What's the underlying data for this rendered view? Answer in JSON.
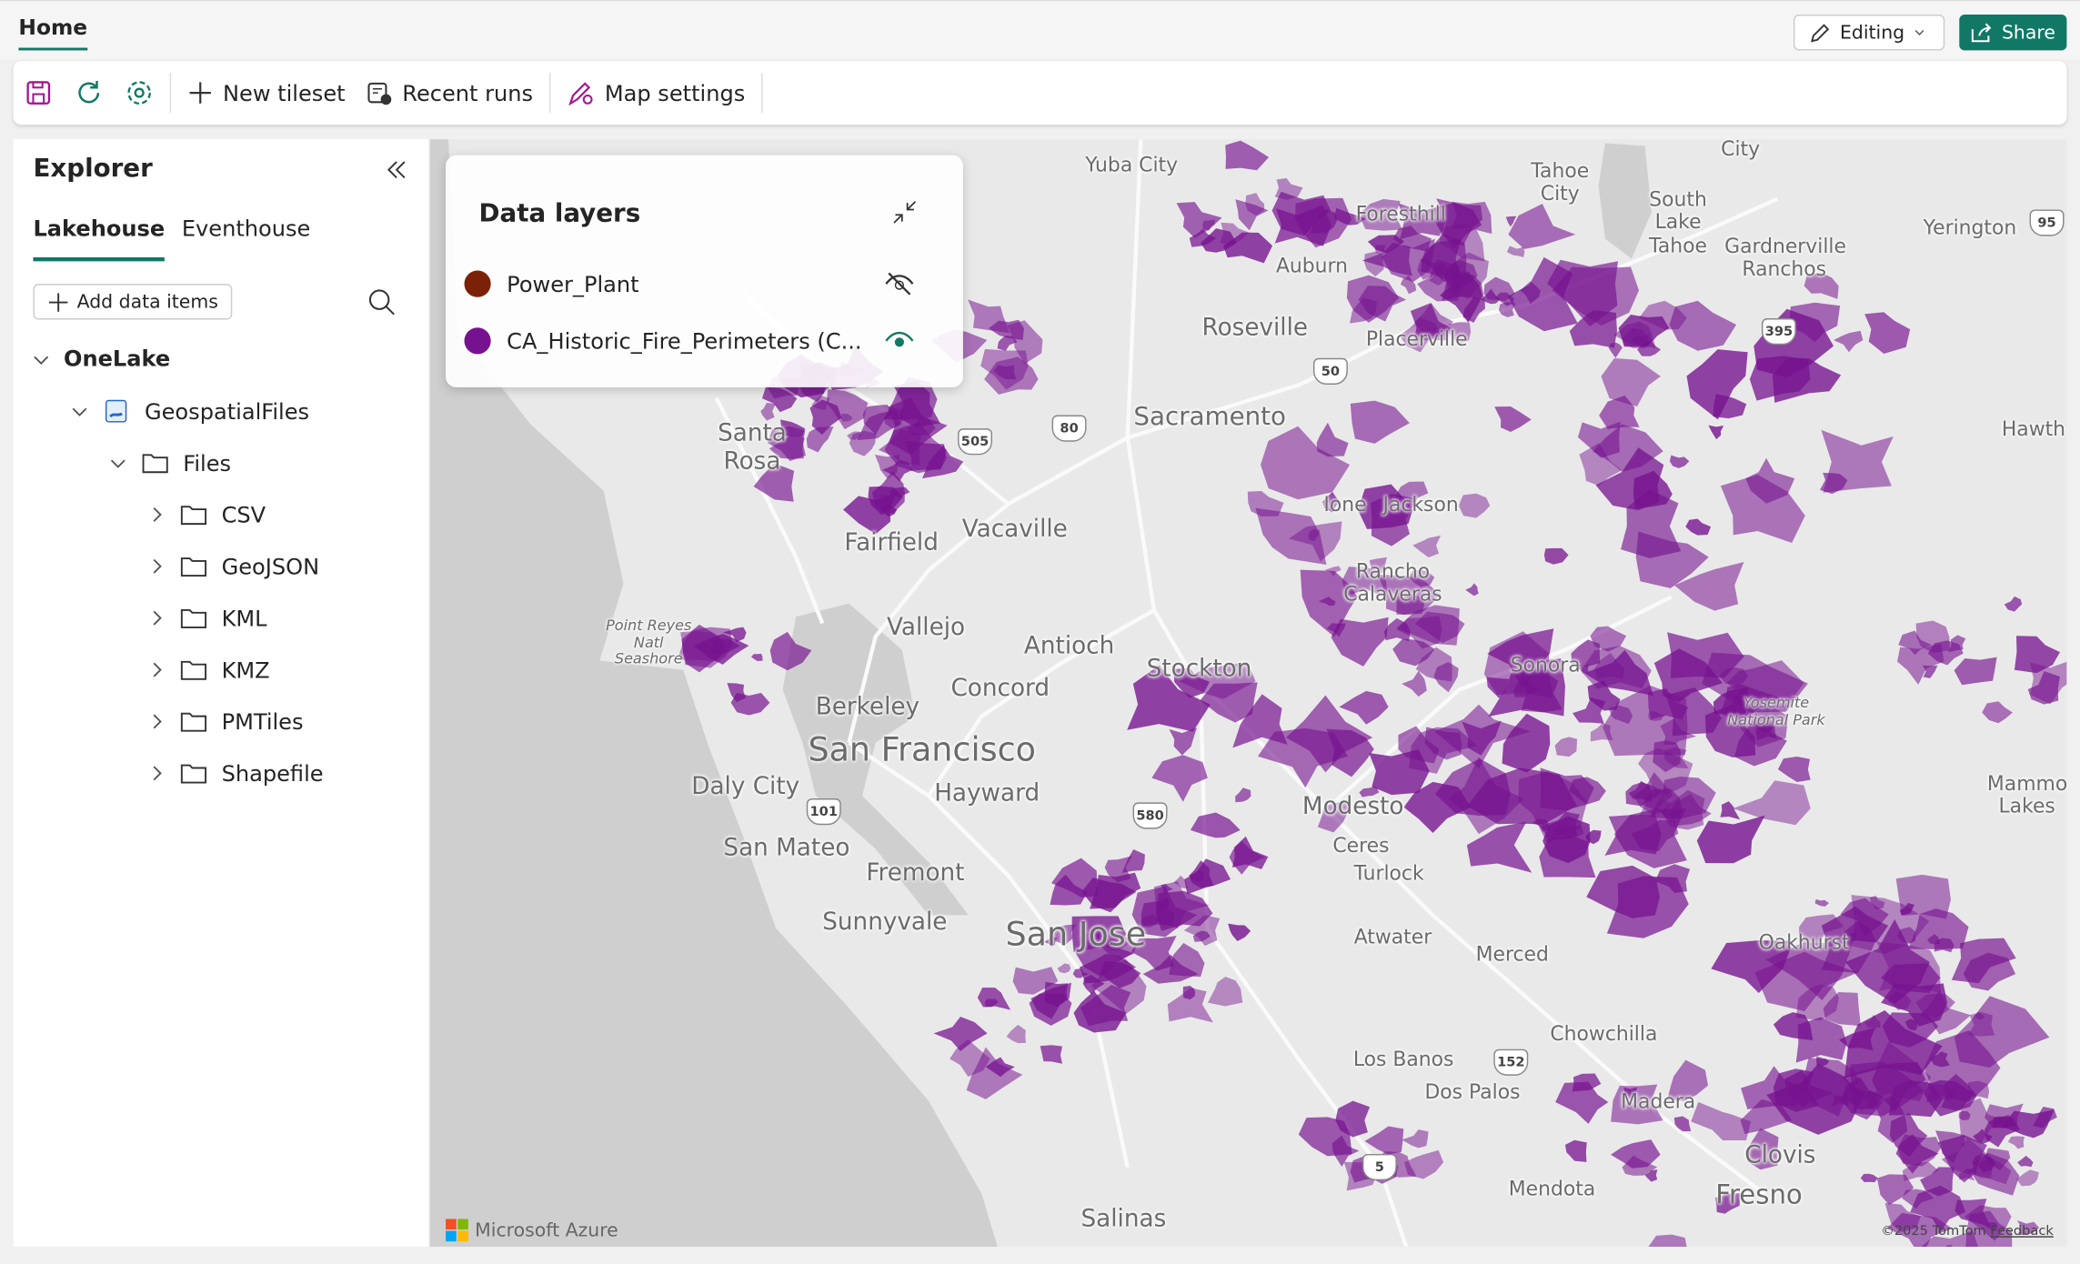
{
  "header": {
    "tab": "Home",
    "editing": "Editing",
    "share": "Share"
  },
  "toolbar": {
    "items": [
      "New tileset",
      "Recent runs",
      "Map settings"
    ]
  },
  "explorer": {
    "title": "Explorer",
    "tabs": [
      "Lakehouse",
      "Eventhouse"
    ],
    "add_button": "Add data items",
    "tree": [
      "OneLake",
      "GeospatialFiles",
      "Files",
      "CSV",
      "GeoJSON",
      "KML",
      "KMZ",
      "PMTiles",
      "Shapefile"
    ]
  },
  "data_layers": {
    "title": "Data layers",
    "layers": [
      {
        "name": "Power_Plant",
        "color": "#7b2108"
      },
      {
        "name": "CA_Historic_Fire_Perimeters (C...",
        "color": "#76128f"
      }
    ]
  },
  "map": {
    "labels": [
      "Yuba City",
      "Foresthill",
      "Auburn",
      "Tahoe City",
      "South Lake Tahoe",
      "Gardnerville Ranchos",
      "Yerington",
      "City",
      "Roseville",
      "Placerville",
      "Sacramento",
      "Santa Rosa",
      "Hawth",
      "Ione",
      "Jackson",
      "Vacaville",
      "Fairfield",
      "Rancho Calaveras",
      "Point Reyes Natl Seashore",
      "Vallejo",
      "Antioch",
      "Stockton",
      "Sonora",
      "Concord",
      "Berkeley",
      "Yosemite National Park",
      "San Francisco",
      "Daly City",
      "Hayward",
      "Modesto",
      "Mammo Lakes",
      "San Mateo",
      "Ceres",
      "Fremont",
      "Turlock",
      "Sunnyvale",
      "San Jose",
      "Atwater",
      "Oakhurst",
      "Merced",
      "Chowchilla",
      "Los Banos",
      "Dos Palos",
      "Madera",
      "Clovis",
      "Mendota",
      "Fresno",
      "Salinas"
    ],
    "shields": [
      "505",
      "80",
      "50",
      "395",
      "95",
      "101",
      "580",
      "152",
      "5"
    ],
    "attribution": "Microsoft Azure",
    "copyright": "©2025 TomTom",
    "feedback": "Feedback"
  }
}
